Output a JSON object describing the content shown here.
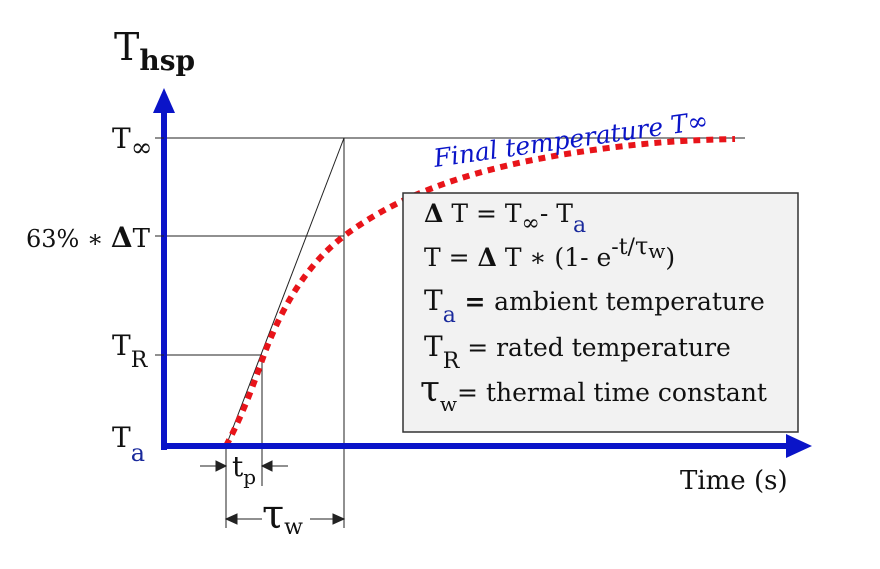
{
  "y_axis": {
    "title_main": "T",
    "title_sub": "hsp",
    "ticks": {
      "t_inf_main": "T",
      "t_inf_sub": "∞",
      "t63_prefix": "63% ∗ ",
      "t63_delta": "Δ",
      "t63_suffix": "T",
      "tr_main": "T",
      "tr_sub": "R",
      "ta_main": "T",
      "ta_sub": "a"
    }
  },
  "x_axis": {
    "label": "Time (s)",
    "tp_main": "t",
    "tp_sub": "p",
    "tw_main": "τ",
    "tw_sub": "w"
  },
  "curve": {
    "label": "Final temperature T∞",
    "style": "dotted",
    "color": "#e8141a"
  },
  "legend": {
    "line1": {
      "delta": "Δ",
      "a": " T = T",
      "b": "∞",
      "c": "- T",
      "d": "a"
    },
    "line2": {
      "a": "T = ",
      "delta": "Δ",
      "b": " T ∗ (1- e",
      "c": "-t/",
      "d": "τ",
      "e": "w",
      "f": ")"
    },
    "line3": {
      "a": "T",
      "b": "a",
      "c": " = ",
      "d": "ambient temperature"
    },
    "line4": {
      "a": "T",
      "b": "R",
      "c": " = ",
      "d": "rated temperature"
    },
    "line5": {
      "a": "τ",
      "b": "w",
      "c": "= ",
      "d": "thermal time constant"
    }
  },
  "colors": {
    "axis": "#0a14c8",
    "curve": "#e8141a",
    "legend_bg": "#f2f2f2",
    "subscript_blue": "#1a2a9c",
    "text": "#111111"
  }
}
